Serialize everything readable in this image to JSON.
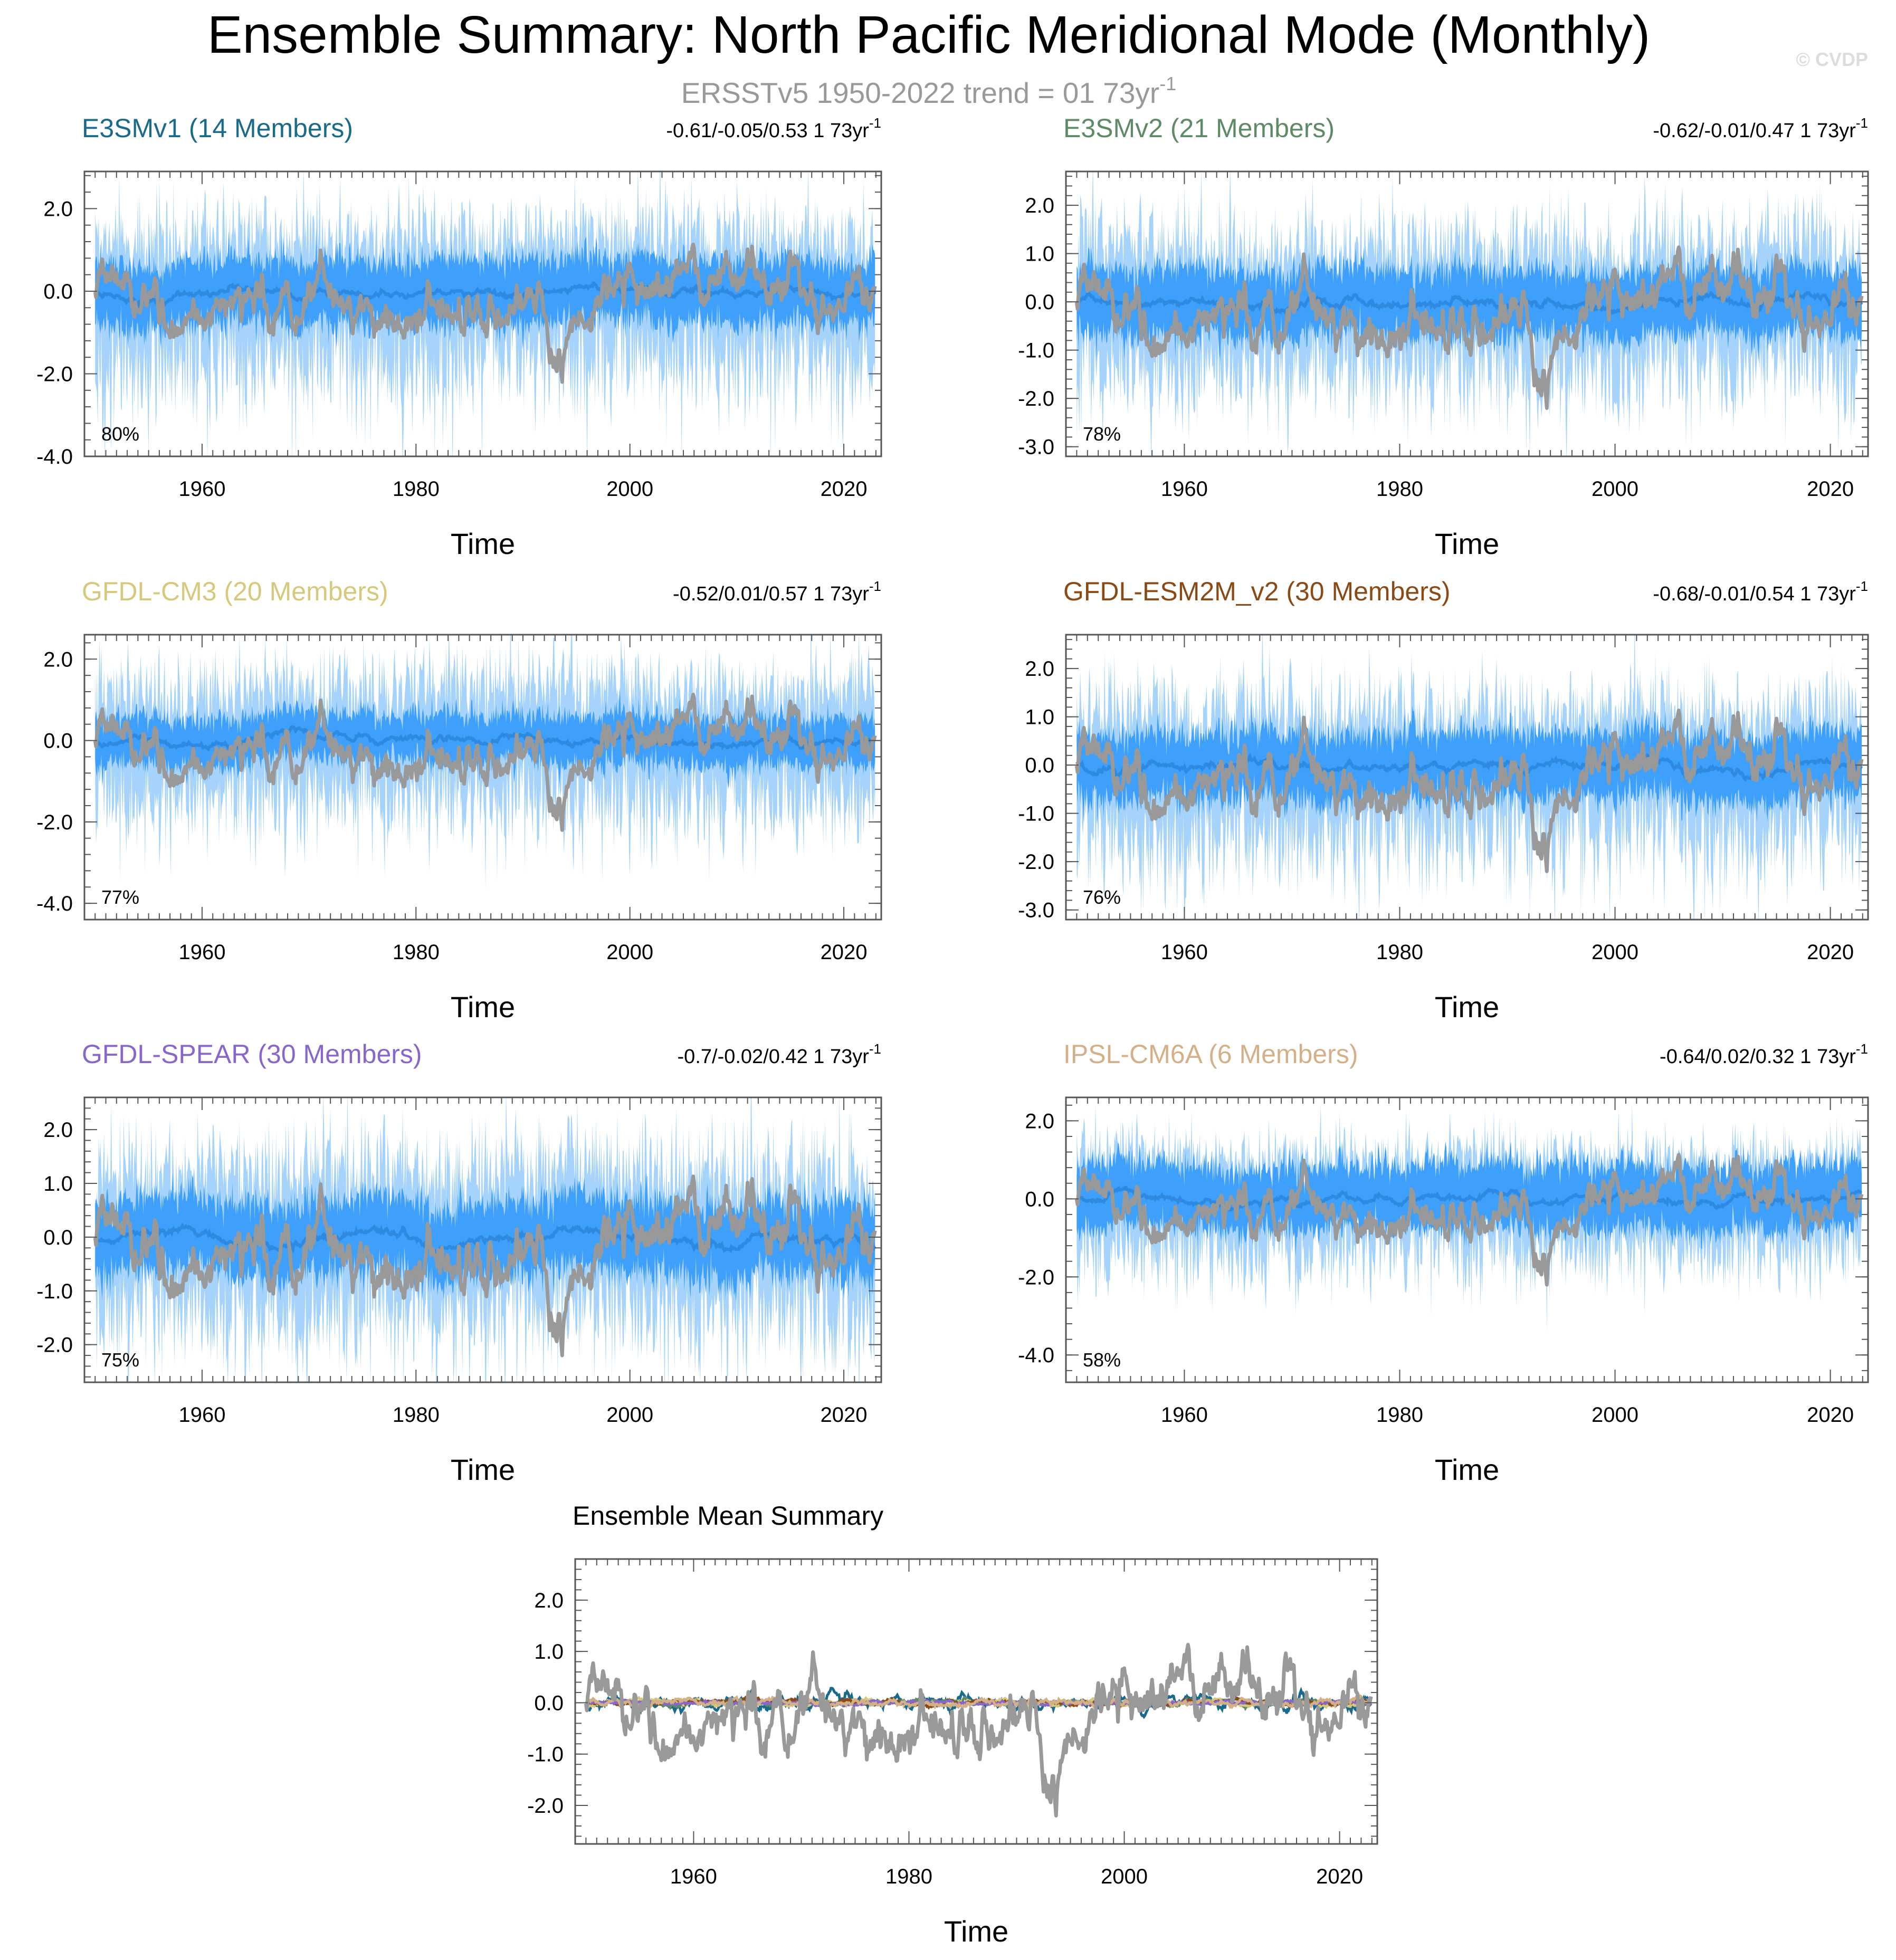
{
  "page": {
    "title": "Ensemble Summary: North Pacific Meridional Mode (Monthly)",
    "subtitle": "ERSST​v5 1950-2022 trend = 01 73yr",
    "subtitle_exp": "-1",
    "watermark": "© CVDP"
  },
  "colors": {
    "observed": "#999999",
    "band_outer": "#a6d3fb",
    "band_inner": "#3ea0fb",
    "ensemble_mean": "#2e8ae0",
    "axis": "#000000"
  },
  "chart_data": [
    {
      "type": "area",
      "name": "E3SMv1",
      "title": "E3SMv1 (14 Members)",
      "title_color": "#1a6a8c",
      "stats": "-0.61/-0.05/0.53 1 73yr",
      "stats_exp": "-1",
      "percent": "80%",
      "xlabel": "Time",
      "xlim": [
        1949,
        2023.5
      ],
      "x_ticks": [
        1960,
        1980,
        2000,
        2020
      ],
      "ylim": [
        -4.0,
        2.9
      ],
      "y_ticks": [
        2.0,
        0.0,
        -2.0,
        -4.0
      ],
      "y_tick_labels": [
        "2.0",
        "0.0",
        "-2.0",
        "-4.0"
      ],
      "band_outer": [
        -2.0,
        1.5
      ],
      "band_inner": [
        -0.8,
        0.8
      ],
      "seed": 11
    },
    {
      "type": "area",
      "name": "E3SMv2",
      "title": "E3SMv2 (21 Members)",
      "title_color": "#5e8a66",
      "stats": "-0.62/-0.01/0.47 1 73yr",
      "stats_exp": "-1",
      "percent": "78%",
      "xlabel": "Time",
      "xlim": [
        1949,
        2023.5
      ],
      "x_ticks": [
        1960,
        1980,
        2000,
        2020
      ],
      "ylim": [
        -3.2,
        2.7
      ],
      "y_ticks": [
        2.0,
        1.0,
        0.0,
        -1.0,
        -2.0,
        -3.0
      ],
      "y_tick_labels": [
        "2.0",
        "1.0",
        "0.0",
        "-1.0",
        "-2.0",
        "-3.0"
      ],
      "band_outer": [
        -1.6,
        1.3
      ],
      "band_inner": [
        -0.7,
        0.7
      ],
      "seed": 23
    },
    {
      "type": "area",
      "name": "GFDL-CM3",
      "title": "GFDL-CM3 (20 Members)",
      "title_color": "#d6c87c",
      "stats": "-0.52/0.01/0.57 1 73yr",
      "stats_exp": "-1",
      "percent": "77%",
      "xlabel": "Time",
      "xlim": [
        1949,
        2023.5
      ],
      "x_ticks": [
        1960,
        1980,
        2000,
        2020
      ],
      "ylim": [
        -4.4,
        2.6
      ],
      "y_ticks": [
        2.0,
        0.0,
        -2.0,
        -4.0
      ],
      "y_tick_labels": [
        "2.0",
        "0.0",
        "-2.0",
        "-4.0"
      ],
      "band_outer": [
        -1.7,
        1.4
      ],
      "band_inner": [
        -0.6,
        0.6
      ],
      "seed": 37
    },
    {
      "type": "area",
      "name": "GFDL-ESM2M_v2",
      "title": "GFDL-ESM2M_v2 (30 Members)",
      "title_color": "#8a4a16",
      "stats": "-0.68/-0.01/0.54 1 73yr",
      "stats_exp": "-1",
      "percent": "76%",
      "xlabel": "Time",
      "xlim": [
        1949,
        2023.5
      ],
      "x_ticks": [
        1960,
        1980,
        2000,
        2020
      ],
      "ylim": [
        -3.2,
        2.7
      ],
      "y_ticks": [
        2.0,
        1.0,
        0.0,
        -1.0,
        -2.0,
        -3.0
      ],
      "y_tick_labels": [
        "2.0",
        "1.0",
        "0.0",
        "-1.0",
        "-2.0",
        "-3.0"
      ],
      "band_outer": [
        -1.7,
        1.3
      ],
      "band_inner": [
        -0.7,
        0.7
      ],
      "seed": 41
    },
    {
      "type": "area",
      "name": "GFDL-SPEAR",
      "title": "GFDL-SPEAR (30 Members)",
      "title_color": "#8866cc",
      "stats": "-0.7/-0.02/0.42 1 73yr",
      "stats_exp": "-1",
      "percent": "75%",
      "xlabel": "Time",
      "xlim": [
        1949,
        2023.5
      ],
      "x_ticks": [
        1960,
        1980,
        2000,
        2020
      ],
      "ylim": [
        -2.7,
        2.6
      ],
      "y_ticks": [
        2.0,
        1.0,
        0.0,
        -1.0,
        -2.0
      ],
      "y_tick_labels": [
        "2.0",
        "1.0",
        "0.0",
        "-1.0",
        "-2.0"
      ],
      "band_outer": [
        -1.6,
        1.4
      ],
      "band_inner": [
        -0.7,
        0.7
      ],
      "seed": 53
    },
    {
      "type": "area",
      "name": "IPSL-CM6A",
      "title": "IPSL-CM6A (6 Members)",
      "title_color": "#d4b088",
      "stats": "-0.64/0.02/0.32 1 73yr",
      "stats_exp": "-1",
      "percent": "58%",
      "xlabel": "Time",
      "xlim": [
        1949,
        2023.5
      ],
      "x_ticks": [
        1960,
        1980,
        2000,
        2020
      ],
      "ylim": [
        -4.7,
        2.6
      ],
      "y_ticks": [
        2.0,
        0.0,
        -2.0,
        -4.0
      ],
      "y_tick_labels": [
        "2.0",
        "0.0",
        "-2.0",
        "-4.0"
      ],
      "band_outer": [
        -1.5,
        1.2
      ],
      "band_inner": [
        -0.8,
        0.9
      ],
      "seed": 67
    },
    {
      "type": "line",
      "name": "Ensemble Mean",
      "title": "Ensemble Mean Summary",
      "title_color": "#000000",
      "xlabel": "Time",
      "xlim": [
        1949,
        2023.5
      ],
      "x_ticks": [
        1960,
        1980,
        2000,
        2020
      ],
      "ylim": [
        -2.75,
        2.8
      ],
      "y_ticks": [
        2.0,
        1.0,
        0.0,
        -1.0,
        -2.0
      ],
      "y_tick_labels": [
        "2.0",
        "1.0",
        "0.0",
        "-1.0",
        "-2.0"
      ],
      "series": [
        {
          "name": "E3SMv1",
          "color": "#1a6a8c",
          "amplitude": 0.3
        },
        {
          "name": "E3SMv2",
          "color": "#5e8a66",
          "amplitude": 0.12
        },
        {
          "name": "GFDL-CM3",
          "color": "#d6c87c",
          "amplitude": 0.12
        },
        {
          "name": "GFDL-ESM2M_v2",
          "color": "#8a4a16",
          "amplitude": 0.1
        },
        {
          "name": "GFDL-SPEAR",
          "color": "#8866cc",
          "amplitude": 0.08
        },
        {
          "name": "IPSL-CM6A",
          "color": "#d4b088",
          "amplitude": 0.16
        }
      ]
    }
  ]
}
